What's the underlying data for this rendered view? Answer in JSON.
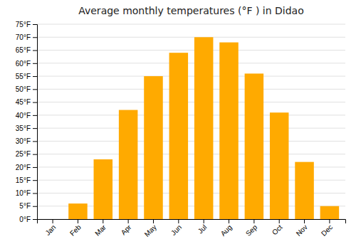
{
  "chart_data": {
    "type": "bar",
    "title": "Average monthly temperatures (°F ) in Didao",
    "categories": [
      "Jan",
      "Feb",
      "Mar",
      "Apr",
      "May",
      "Jun",
      "Jul",
      "Aug",
      "Sep",
      "Oct",
      "Nov",
      "Dec"
    ],
    "values": [
      0,
      6,
      23,
      42,
      55,
      64,
      70,
      68,
      56,
      41,
      22,
      5
    ],
    "color": "#FFAA00",
    "ylim": [
      0,
      75
    ],
    "yticks": [
      {
        "value": 0,
        "label": "0°F"
      },
      {
        "value": 5,
        "label": "5°F"
      },
      {
        "value": 10,
        "label": "10°F"
      },
      {
        "value": 15,
        "label": "15°F"
      },
      {
        "value": 20,
        "label": "20°F"
      },
      {
        "value": 25,
        "label": "25°F"
      },
      {
        "value": 30,
        "label": "30°F"
      },
      {
        "value": 35,
        "label": "35°F"
      },
      {
        "value": 40,
        "label": "40°F"
      },
      {
        "value": 45,
        "label": "45°F"
      },
      {
        "value": 50,
        "label": "50°F"
      },
      {
        "value": 55,
        "label": "55°F"
      },
      {
        "value": 60,
        "label": "60°F"
      },
      {
        "value": 65,
        "label": "65°F"
      },
      {
        "value": 70,
        "label": "70°F"
      },
      {
        "value": 75,
        "label": "75°F"
      }
    ],
    "grid": true
  }
}
